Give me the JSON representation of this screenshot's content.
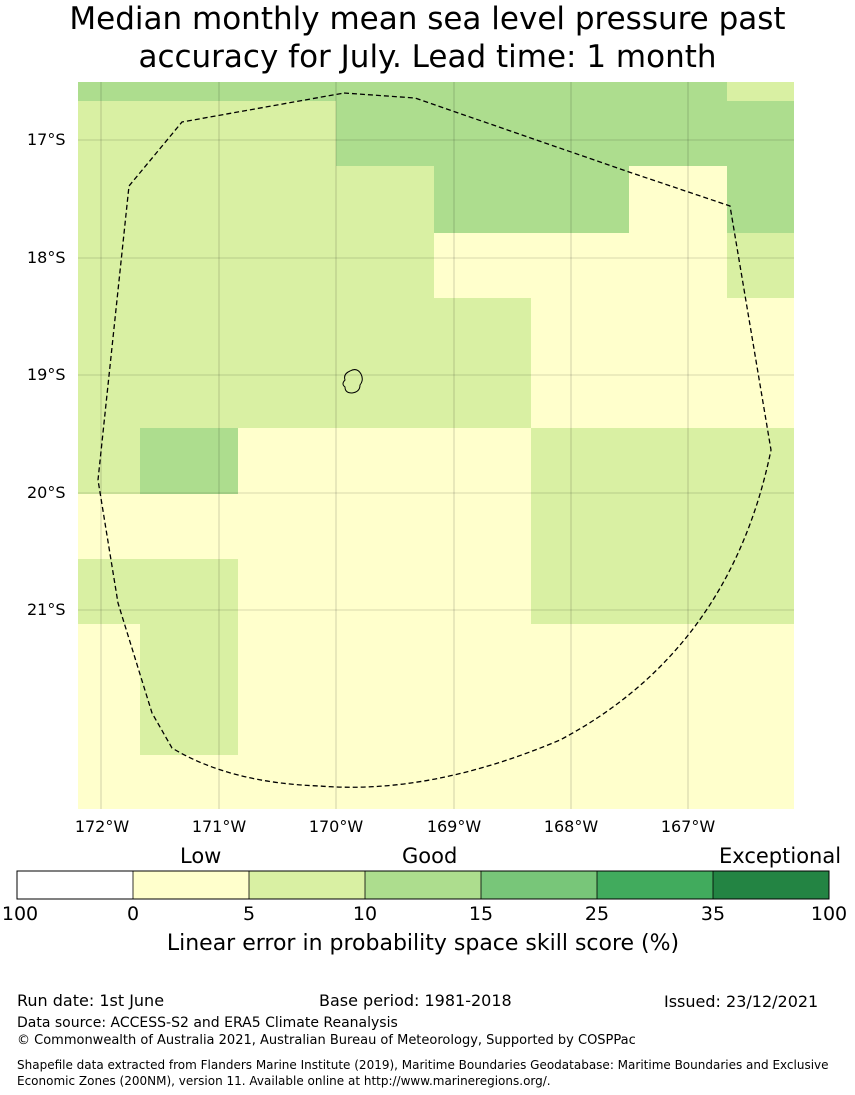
{
  "title": {
    "line1": "Median monthly mean sea level pressure past",
    "line2": "accuracy for July. Lead time: 1 month"
  },
  "map": {
    "lat_labels": [
      "17°S",
      "18°S",
      "19°S",
      "20°S",
      "21°S"
    ],
    "lon_labels": [
      "172°W",
      "171°W",
      "170°W",
      "169°W",
      "168°W",
      "167°W"
    ],
    "grid": true,
    "boundary_style": "dashed",
    "category_colors": {
      "0-5": "#FFFFCC",
      "5-10": "#D9F0A3",
      "10-15": "#ADDD8E",
      "15-25": "#78C679",
      "25-35": "#41AB5D",
      "35-100": "#238443"
    }
  },
  "legend": {
    "category_labels": [
      "Low",
      "Good",
      "Exceptional"
    ],
    "ticks": [
      "100",
      "0",
      "5",
      "10",
      "15",
      "25",
      "35",
      "100"
    ],
    "colors": [
      "#FFFFFF",
      "#FFFFCC",
      "#D9F0A3",
      "#ADDD8E",
      "#78C679",
      "#41AB5D",
      "#238443"
    ],
    "title": "Linear error in probability space skill score (%)"
  },
  "footer": {
    "run_date": "Run date: 1st June",
    "base_period": "Base period: 1981-2018",
    "issued": "Issued: 23/12/2021",
    "data_source": "Data source: ACCESS-S2 and ERA5 Climate Reanalysis",
    "copyright": "© Commonwealth of Australia 2021, Australian Bureau of Meteorology, Supported by COSPPac",
    "shapefile_line1": "Shapefile data extracted from Flanders Marine Institute (2019), Maritime Boundaries Geodatabase: Maritime Boundaries and Exclusive",
    "shapefile_line2": "Economic Zones (200NM), version 11. Available online at http://www.marineregions.org/."
  }
}
